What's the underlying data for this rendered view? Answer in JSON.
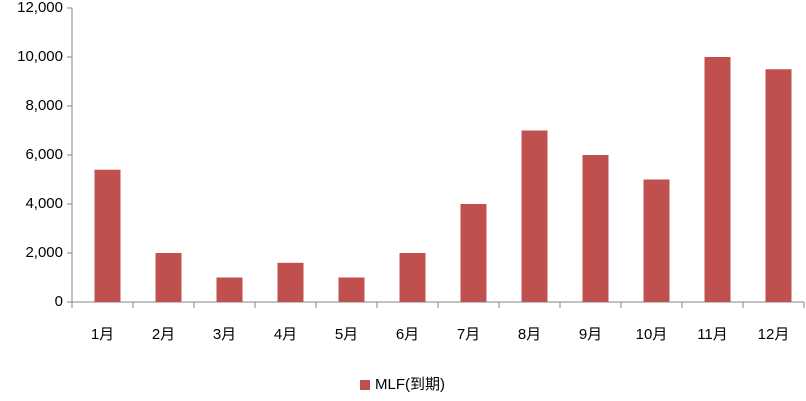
{
  "chart_data": {
    "type": "bar",
    "categories": [
      "1月",
      "2月",
      "3月",
      "4月",
      "5月",
      "6月",
      "7月",
      "8月",
      "9月",
      "10月",
      "11月",
      "12月"
    ],
    "series": [
      {
        "name": "MLF(到期)",
        "color": "#c0504d",
        "values": [
          5400,
          2000,
          1000,
          1600,
          1000,
          2000,
          4000,
          7000,
          6000,
          5000,
          10000,
          9500
        ]
      }
    ],
    "ylim": [
      0,
      12000
    ],
    "yticks": [
      0,
      {
        "value": 2000,
        "label": "2,000"
      },
      {
        "value": 4000,
        "label": "4,000"
      },
      {
        "value": 6000,
        "label": "6,000"
      },
      {
        "value": 8000,
        "label": "8,000"
      },
      {
        "value": 10000,
        "label": "10,000"
      },
      {
        "value": 12000,
        "label": "12,000"
      }
    ],
    "grid": false,
    "legend": "bottom"
  }
}
